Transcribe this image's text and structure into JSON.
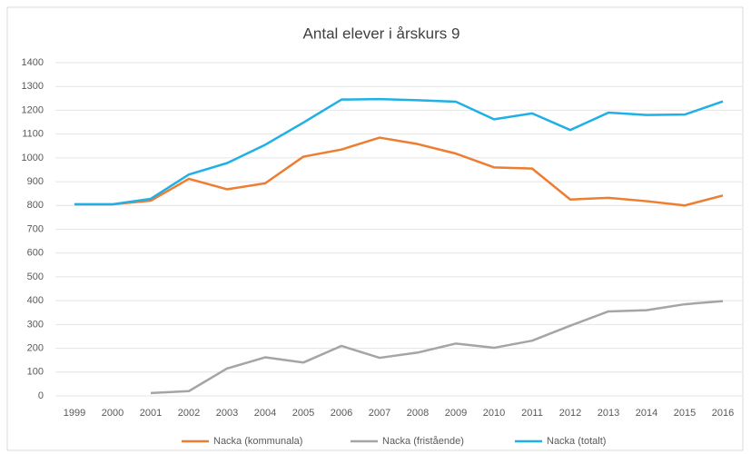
{
  "chart_data": {
    "type": "line",
    "title": "Antal elever i årskurs 9",
    "categories": [
      "1999",
      "2000",
      "2001",
      "2002",
      "2003",
      "2004",
      "2005",
      "2006",
      "2007",
      "2008",
      "2009",
      "2010",
      "2011",
      "2012",
      "2013",
      "2014",
      "2015",
      "2016"
    ],
    "series": [
      {
        "name": "Nacka (kommunala)",
        "color": "#ed7d31",
        "values": [
          805,
          805,
          820,
          912,
          868,
          893,
          1005,
          1035,
          1085,
          1058,
          1018,
          960,
          955,
          825,
          832,
          818,
          800,
          842
        ]
      },
      {
        "name": "Nacka (fristående)",
        "color": "#a5a5a5",
        "values": [
          null,
          null,
          12,
          20,
          115,
          162,
          140,
          210,
          160,
          182,
          220,
          202,
          232,
          295,
          355,
          360,
          385,
          398
        ]
      },
      {
        "name": "Nacka (totalt)",
        "color": "#1fb0e6",
        "values": [
          805,
          805,
          828,
          930,
          978,
          1055,
          1148,
          1245,
          1247,
          1242,
          1236,
          1162,
          1187,
          1117,
          1190,
          1180,
          1182,
          1237
        ]
      }
    ],
    "ylim": [
      0,
      1400
    ],
    "yticks": [
      0,
      100,
      200,
      300,
      400,
      500,
      600,
      700,
      800,
      900,
      1000,
      1100,
      1200,
      1300,
      1400
    ],
    "grid": true,
    "legend": "bottom"
  }
}
